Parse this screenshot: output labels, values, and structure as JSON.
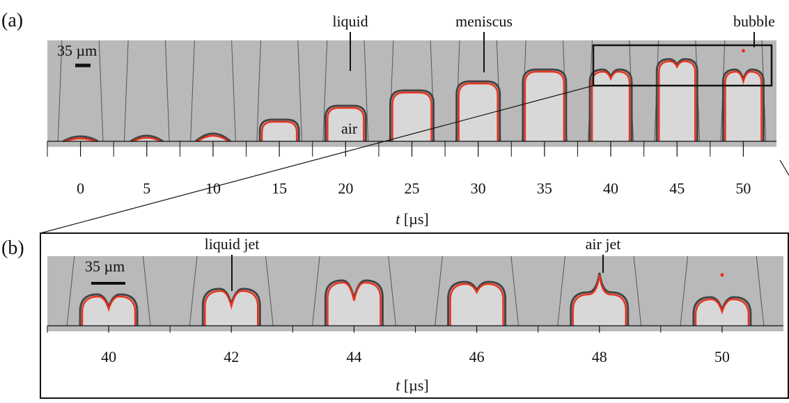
{
  "panel_a": {
    "label": "(a)",
    "scale_bar": "35 µm",
    "annotations": {
      "liquid": "liquid",
      "meniscus": "meniscus",
      "bubble": "bubble",
      "air": "air"
    },
    "ticks": [
      0,
      5,
      10,
      15,
      20,
      25,
      30,
      35,
      40,
      45,
      50
    ],
    "axis_label_var": "t",
    "axis_label_unit": "[µs]"
  },
  "panel_b": {
    "label": "(b)",
    "scale_bar": "35 µm",
    "annotations": {
      "liquid_jet": "liquid jet",
      "air_jet": "air jet"
    },
    "ticks": [
      40,
      42,
      44,
      46,
      48,
      50
    ],
    "axis_label_var": "t",
    "axis_label_unit": "[µs]"
  }
}
